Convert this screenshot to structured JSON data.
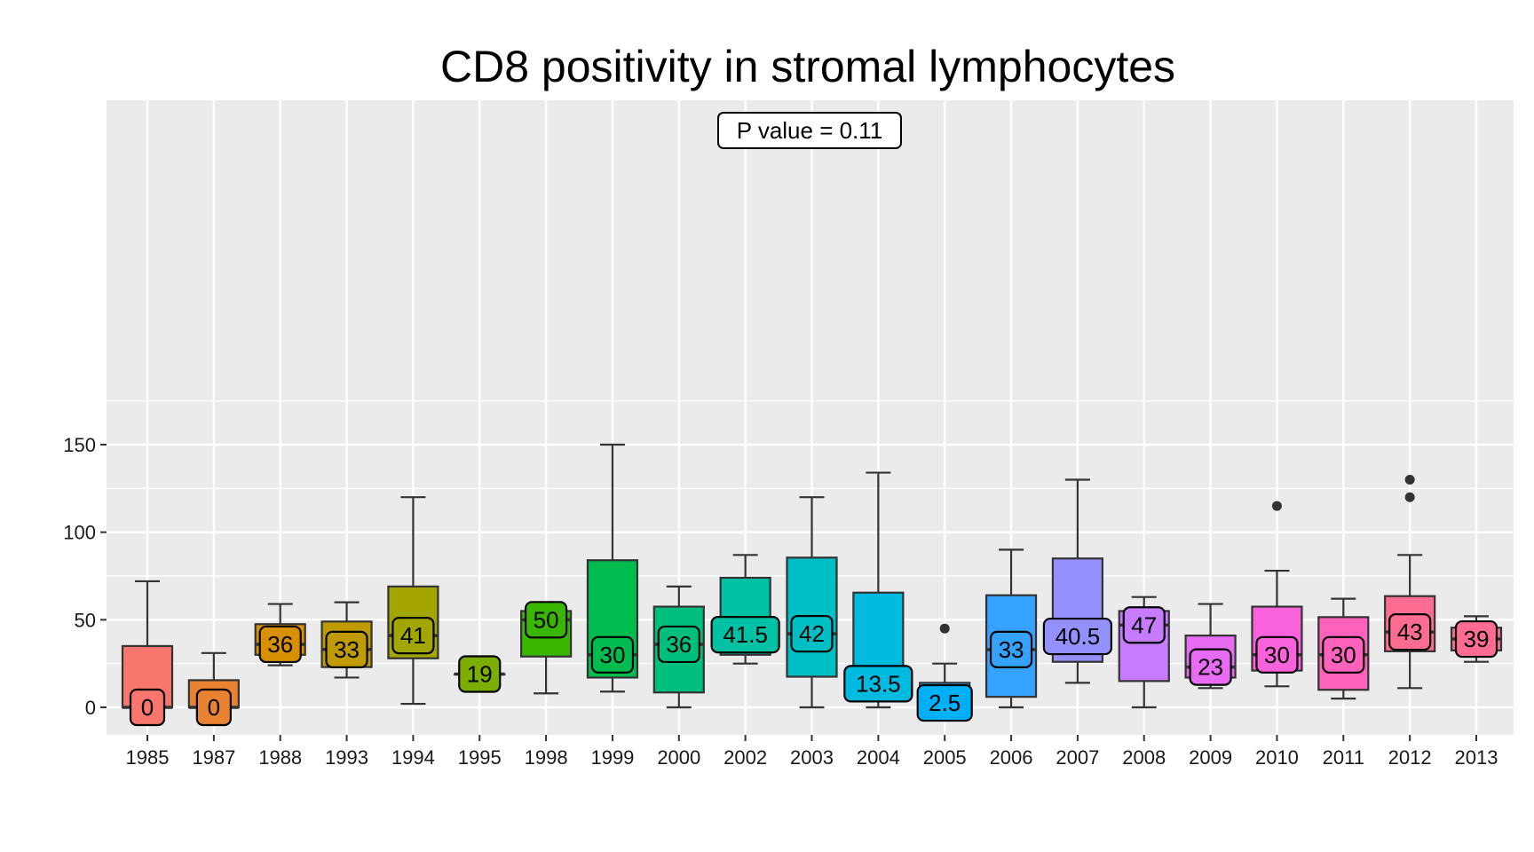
{
  "chart_data": {
    "type": "boxplot",
    "title": "CD8 positivity in stromal lymphocytes",
    "xlabel": "",
    "ylabel": "",
    "ylim": [
      -8,
      172
    ],
    "yticks": [
      0,
      50,
      100,
      150
    ],
    "grid": true,
    "legend": "none",
    "annotation": "P value = 0.11",
    "categories": [
      "1985",
      "1987",
      "1988",
      "1993",
      "1994",
      "1995",
      "1998",
      "1999",
      "2000",
      "2002",
      "2003",
      "2004",
      "2005",
      "2006",
      "2007",
      "2008",
      "2009",
      "2010",
      "2011",
      "2012",
      "2013"
    ],
    "boxes": [
      {
        "category": "1985",
        "whisker_low": 0,
        "q1": 0,
        "median": 0,
        "q3": 35,
        "whisker_high": 72,
        "outliers": [],
        "median_label": "0",
        "color": "#F8766D"
      },
      {
        "category": "1987",
        "whisker_low": 0,
        "q1": 0,
        "median": 0,
        "q3": 15.5,
        "whisker_high": 31,
        "outliers": [],
        "median_label": "0",
        "color": "#EA8331"
      },
      {
        "category": "1988",
        "whisker_low": 24,
        "q1": 30,
        "median": 36,
        "q3": 47.5,
        "whisker_high": 59,
        "outliers": [],
        "median_label": "36",
        "color": "#D89000"
      },
      {
        "category": "1993",
        "whisker_low": 17,
        "q1": 23,
        "median": 33,
        "q3": 49,
        "whisker_high": 60,
        "outliers": [],
        "median_label": "33",
        "color": "#C09B00"
      },
      {
        "category": "1994",
        "whisker_low": 2,
        "q1": 28,
        "median": 41,
        "q3": 69,
        "whisker_high": 120,
        "outliers": [],
        "median_label": "41",
        "color": "#A3A500"
      },
      {
        "category": "1995",
        "whisker_low": 19,
        "q1": 19,
        "median": 19,
        "q3": 19,
        "whisker_high": 19,
        "outliers": [],
        "median_label": "19",
        "color": "#7CAE00"
      },
      {
        "category": "1998",
        "whisker_low": 8,
        "q1": 29,
        "median": 50,
        "q3": 55,
        "whisker_high": 57,
        "outliers": [],
        "median_label": "50",
        "color": "#39B600"
      },
      {
        "category": "1999",
        "whisker_low": 9,
        "q1": 17,
        "median": 30,
        "q3": 84,
        "whisker_high": 150,
        "outliers": [],
        "median_label": "30",
        "color": "#00BB4E"
      },
      {
        "category": "2000",
        "whisker_low": 0,
        "q1": 8.5,
        "median": 36,
        "q3": 57.5,
        "whisker_high": 69,
        "outliers": [],
        "median_label": "36",
        "color": "#00BF7D"
      },
      {
        "category": "2002",
        "whisker_low": 25,
        "q1": 30,
        "median": 41.5,
        "q3": 74,
        "whisker_high": 87,
        "outliers": [],
        "median_label": "41.5",
        "color": "#00C1A3"
      },
      {
        "category": "2003",
        "whisker_low": 0,
        "q1": 17.5,
        "median": 42,
        "q3": 85.5,
        "whisker_high": 120,
        "outliers": [],
        "median_label": "42",
        "color": "#00BFC4"
      },
      {
        "category": "2004",
        "whisker_low": 0,
        "q1": 7,
        "median": 13.5,
        "q3": 65.5,
        "whisker_high": 134,
        "outliers": [],
        "median_label": "13.5",
        "color": "#00BAE0"
      },
      {
        "category": "2005",
        "whisker_low": 0,
        "q1": 0,
        "median": 2.5,
        "q3": 14,
        "whisker_high": 25,
        "outliers": [
          45
        ],
        "median_label": "2.5",
        "color": "#00B0F6"
      },
      {
        "category": "2006",
        "whisker_low": 0,
        "q1": 6,
        "median": 33,
        "q3": 64,
        "whisker_high": 90,
        "outliers": [],
        "median_label": "33",
        "color": "#35A2FF"
      },
      {
        "category": "2007",
        "whisker_low": 14,
        "q1": 26,
        "median": 40.5,
        "q3": 85,
        "whisker_high": 130,
        "outliers": [],
        "median_label": "40.5",
        "color": "#9590FF"
      },
      {
        "category": "2008",
        "whisker_low": 0,
        "q1": 15,
        "median": 47,
        "q3": 55,
        "whisker_high": 63,
        "outliers": [],
        "median_label": "47",
        "color": "#C77CFF"
      },
      {
        "category": "2009",
        "whisker_low": 11,
        "q1": 17,
        "median": 23,
        "q3": 41,
        "whisker_high": 59,
        "outliers": [],
        "median_label": "23",
        "color": "#E76BF3"
      },
      {
        "category": "2010",
        "whisker_low": 12,
        "q1": 21,
        "median": 30,
        "q3": 57.5,
        "whisker_high": 78,
        "outliers": [
          115
        ],
        "median_label": "30",
        "color": "#FA62DB"
      },
      {
        "category": "2011",
        "whisker_low": 5,
        "q1": 10,
        "median": 30,
        "q3": 51.5,
        "whisker_high": 62,
        "outliers": [],
        "median_label": "30",
        "color": "#FF62BC"
      },
      {
        "category": "2012",
        "whisker_low": 11,
        "q1": 32,
        "median": 43,
        "q3": 63.5,
        "whisker_high": 87,
        "outliers": [
          120,
          130
        ],
        "median_label": "43",
        "color": "#FF6C91"
      },
      {
        "category": "2013",
        "whisker_low": 26,
        "q1": 32.5,
        "median": 39,
        "q3": 45.5,
        "whisker_high": 52,
        "outliers": [],
        "median_label": "39",
        "color": "#FF6C91"
      }
    ]
  },
  "colors": {
    "panel_background": "#EBEBEB",
    "grid": "#FFFFFF",
    "box_outline": "#333333"
  }
}
